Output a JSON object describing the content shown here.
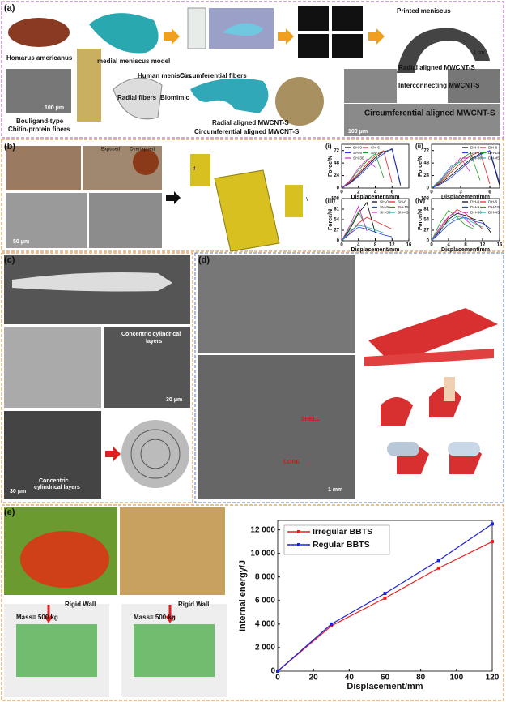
{
  "panels": [
    {
      "label": "(a)",
      "texts": [
        "Homarus americanus",
        "medial meniscus model",
        "Printed meniscus",
        "1 cm",
        "Radial aligned MWCNT-S",
        "Interconnecting MWCNT-S",
        "100 μm",
        "Bouligand-type",
        "Chitin-protein fibers",
        "Human meniscus",
        "Radial fibers",
        "Circumferential fibers",
        "Biomimic",
        "Radial aligned MWCNT-S",
        "Circumferential aligned MWCNT-S",
        "Circumferential aligned MWCNT-S",
        "100 μm"
      ]
    },
    {
      "label": "(b)",
      "texts": [
        "Exposed",
        "Overlapped",
        "50 μm",
        "d",
        "γ"
      ]
    },
    {
      "label": "(c)",
      "texts": [
        "Concentric cylindrical",
        "layers",
        "30 μm",
        "30 μm",
        "Concentric",
        "cylindrical layers"
      ]
    },
    {
      "label": "(d)",
      "texts": [
        "SHELL",
        "CORE",
        "1 mm"
      ]
    },
    {
      "label": "(e)",
      "texts": [
        "Rigid Wall",
        "Mass= 500 kg",
        "Rigid Wall",
        "Mass= 500 kg"
      ]
    }
  ],
  "chart_data": [
    {
      "type": "line",
      "title": "(i)",
      "x_label": "Displacement/mm",
      "y_label": "Force/N",
      "x": [
        0,
        1,
        2,
        3,
        4,
        5,
        6,
        7
      ],
      "xlim": [
        0,
        8
      ],
      "ylim": [
        0,
        84
      ],
      "xticks": [
        0,
        2,
        4,
        6
      ],
      "yticks": [
        0,
        24,
        48,
        72
      ],
      "legend": "upper left",
      "series": [
        {
          "name": "SH-0",
          "color": "#000000",
          "values": [
            0,
            10,
            25,
            42,
            58,
            70,
            74,
            5
          ]
        },
        {
          "name": "SH-6",
          "color": "#e02020",
          "values": [
            0,
            12,
            28,
            46,
            62,
            72,
            10,
            null
          ]
        },
        {
          "name": "SH-9",
          "color": "#2040e0",
          "values": [
            0,
            9,
            22,
            38,
            54,
            66,
            76,
            8
          ]
        },
        {
          "name": "SH-15",
          "color": "#20a020",
          "values": [
            0,
            14,
            34,
            52,
            66,
            20,
            null,
            null
          ]
        },
        {
          "name": "SH-30",
          "color": "#d020d0",
          "values": [
            0,
            15,
            38,
            55,
            40,
            null,
            null,
            null
          ]
        }
      ]
    },
    {
      "type": "line",
      "title": "(ii)",
      "x_label": "Displacement/mm",
      "y_label": "Force/N",
      "x": [
        0,
        1,
        2,
        3,
        4,
        5,
        6,
        7
      ],
      "xlim": [
        0,
        7
      ],
      "ylim": [
        0,
        84
      ],
      "xticks": [
        0,
        3,
        6
      ],
      "yticks": [
        0,
        24,
        48,
        72
      ],
      "legend": "upper right",
      "series": [
        {
          "name": "DH-0",
          "color": "#000000",
          "values": [
            0,
            10,
            24,
            40,
            55,
            66,
            70,
            5
          ]
        },
        {
          "name": "DH-6",
          "color": "#e02020",
          "values": [
            0,
            12,
            30,
            48,
            62,
            70,
            8,
            null
          ]
        },
        {
          "name": "DH-9",
          "color": "#2040e0",
          "values": [
            0,
            8,
            20,
            36,
            52,
            64,
            72,
            10
          ]
        },
        {
          "name": "DH-15",
          "color": "#20a020",
          "values": [
            0,
            14,
            34,
            54,
            68,
            15,
            null,
            null
          ]
        },
        {
          "name": "DH-30",
          "color": "#d020d0",
          "values": [
            0,
            16,
            38,
            58,
            30,
            null,
            null,
            null
          ]
        },
        {
          "name": "DH-45",
          "color": "#20b0b0",
          "values": [
            0,
            18,
            42,
            50,
            null,
            null,
            null,
            null
          ]
        }
      ]
    },
    {
      "type": "line",
      "title": "(iii)",
      "x_label": "Displacement/mm",
      "y_label": "Force/N",
      "x": [
        0,
        2,
        4,
        6,
        8,
        10,
        12
      ],
      "xlim": [
        0,
        16
      ],
      "ylim": [
        0,
        108
      ],
      "xticks": [
        0,
        4,
        8,
        12,
        16
      ],
      "yticks": [
        0,
        27,
        54,
        81,
        108
      ],
      "legend": "upper right",
      "series": [
        {
          "name": "SH-0",
          "color": "#000000",
          "values": [
            0,
            30,
            70,
            98,
            20,
            null,
            null
          ]
        },
        {
          "name": "SH-6",
          "color": "#e02020",
          "values": [
            0,
            20,
            45,
            60,
            50,
            40,
            30
          ]
        },
        {
          "name": "SH-9",
          "color": "#2040e0",
          "values": [
            0,
            18,
            35,
            30,
            22,
            15,
            10
          ]
        },
        {
          "name": "SH-15",
          "color": "#20a020",
          "values": [
            0,
            35,
            75,
            30,
            null,
            null,
            null
          ]
        },
        {
          "name": "SH-30",
          "color": "#d020d0",
          "values": [
            0,
            40,
            88,
            25,
            null,
            null,
            null
          ]
        },
        {
          "name": "SH-45",
          "color": "#20b0b0",
          "values": [
            0,
            25,
            40,
            35,
            28,
            20,
            null
          ]
        }
      ]
    },
    {
      "type": "line",
      "title": "(iv)",
      "x_label": "Displacement/mm",
      "y_label": "Force/N",
      "x": [
        0,
        2,
        4,
        6,
        8,
        10,
        12,
        14
      ],
      "xlim": [
        0,
        16
      ],
      "ylim": [
        0,
        108
      ],
      "xticks": [
        0,
        4,
        8,
        12,
        16
      ],
      "yticks": [
        0,
        27,
        54,
        81,
        108
      ],
      "legend": "upper right",
      "series": [
        {
          "name": "DH-0",
          "color": "#000000",
          "values": [
            0,
            25,
            55,
            70,
            65,
            55,
            50,
            20
          ]
        },
        {
          "name": "DH-6",
          "color": "#e02020",
          "values": [
            0,
            30,
            60,
            80,
            70,
            50,
            30,
            null
          ]
        },
        {
          "name": "DH-9",
          "color": "#2040e0",
          "values": [
            0,
            20,
            42,
            55,
            60,
            50,
            45,
            30
          ]
        },
        {
          "name": "DH-15",
          "color": "#20a020",
          "values": [
            0,
            45,
            78,
            60,
            40,
            30,
            null,
            null
          ]
        },
        {
          "name": "DH-30",
          "color": "#d020d0",
          "values": [
            0,
            35,
            62,
            75,
            55,
            35,
            null,
            null
          ]
        },
        {
          "name": "DH-45",
          "color": "#20b0b0",
          "values": [
            0,
            28,
            50,
            62,
            58,
            45,
            35,
            null
          ]
        }
      ]
    },
    {
      "type": "line",
      "x_label": "Displacement/mm",
      "y_label": "Internal energy/J",
      "x": [
        0,
        30,
        60,
        90,
        120
      ],
      "xlim": [
        0,
        120
      ],
      "ylim": [
        0,
        12800
      ],
      "xticks": [
        0,
        20,
        40,
        60,
        80,
        100,
        120
      ],
      "yticks": [
        0,
        {
          "value": 2000,
          "label": "2 000"
        },
        {
          "value": 4000,
          "label": "4 000"
        },
        {
          "value": 6000,
          "label": "6 000"
        },
        {
          "value": 8000,
          "label": "8 000"
        },
        {
          "value": 10000,
          "label": "10 000"
        },
        {
          "value": 12000,
          "label": "12 000"
        }
      ],
      "legend": "upper left",
      "series": [
        {
          "name": "Irregular BBTS",
          "color": "#e8201c",
          "values": [
            0,
            3850,
            6200,
            8750,
            11000
          ]
        },
        {
          "name": "Regular BBTS",
          "color": "#1c22d8",
          "values": [
            0,
            4000,
            6600,
            9400,
            12500
          ]
        }
      ]
    }
  ]
}
